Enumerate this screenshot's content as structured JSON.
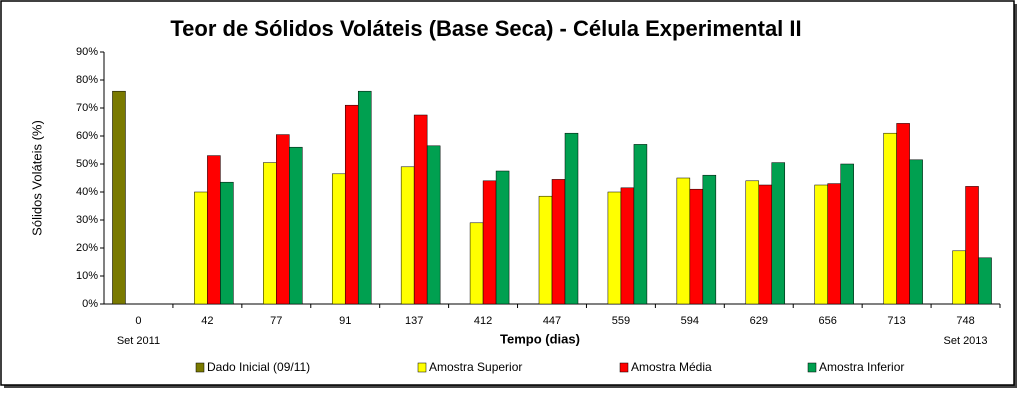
{
  "chart_data": {
    "type": "bar",
    "title": "Teor de Sólidos Voláteis (Base Seca) - Célula Experimental II",
    "x_label": "Tempo (dias)",
    "y_label": "Sólidos Voláteis (%)",
    "categories": [
      "0",
      "42",
      "77",
      "91",
      "137",
      "412",
      "447",
      "559",
      "594",
      "629",
      "656",
      "713",
      "748"
    ],
    "category_sublabels": [
      "Set 2011",
      null,
      null,
      null,
      null,
      null,
      null,
      null,
      null,
      null,
      null,
      null,
      "Set 2013"
    ],
    "series": [
      {
        "name": "Dado Inicial (09/11)",
        "color": "#7a7a00",
        "values": [
          76,
          null,
          null,
          null,
          null,
          null,
          null,
          null,
          null,
          null,
          null,
          null,
          null
        ]
      },
      {
        "name": "Amostra Superior",
        "color": "#ffff00",
        "values": [
          null,
          40,
          50.5,
          46.5,
          49,
          29,
          38.5,
          40,
          45,
          44,
          42.5,
          61,
          19
        ]
      },
      {
        "name": "Amostra Média",
        "color": "#ff0000",
        "values": [
          null,
          53,
          60.5,
          71,
          67.5,
          44,
          44.5,
          41.5,
          41,
          42.5,
          43,
          64.5,
          42
        ]
      },
      {
        "name": "Amostra Inferior",
        "color": "#00a050",
        "values": [
          null,
          43.5,
          56,
          76,
          56.5,
          47.5,
          61,
          57,
          46,
          50.5,
          50,
          51.5,
          16.5
        ]
      }
    ],
    "ylim": [
      0,
      90
    ],
    "yticks": [
      {
        "value": 0,
        "label": "0%"
      },
      {
        "value": 10,
        "label": "10%"
      },
      {
        "value": 20,
        "label": "20%"
      },
      {
        "value": 30,
        "label": "30%"
      },
      {
        "value": 40,
        "label": "40%"
      },
      {
        "value": 50,
        "label": "50%"
      },
      {
        "value": 60,
        "label": "60%"
      },
      {
        "value": 70,
        "label": "70%"
      },
      {
        "value": 80,
        "label": "80%"
      },
      {
        "value": 90,
        "label": "90%"
      }
    ],
    "grid": false,
    "legend": "bottom"
  }
}
